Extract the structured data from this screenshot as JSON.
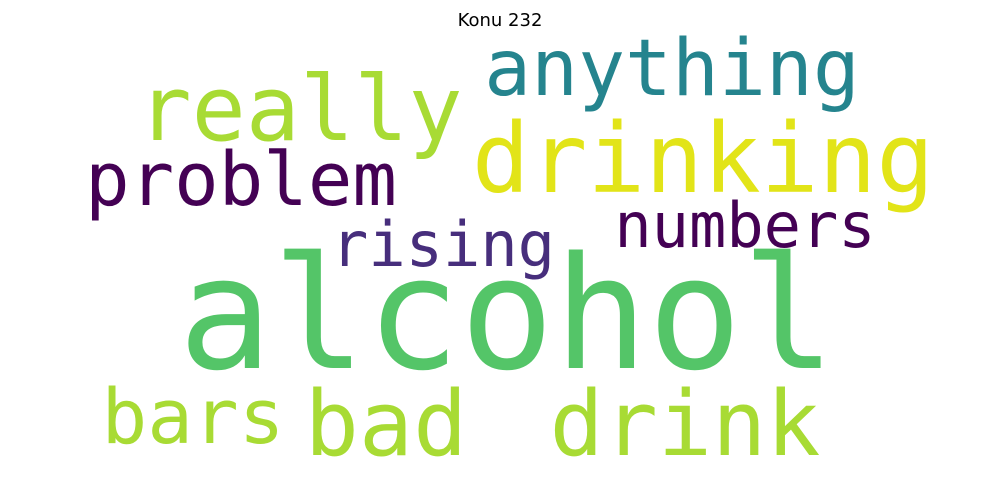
{
  "title": "Konu 232",
  "words": [
    {
      "text": "alcohol",
      "color": "#54c568"
    },
    {
      "text": "drinking",
      "color": "#e2e418"
    },
    {
      "text": "really",
      "color": "#a8db34"
    },
    {
      "text": "anything",
      "color": "#25848e"
    },
    {
      "text": "problem",
      "color": "#440154"
    },
    {
      "text": "numbers",
      "color": "#440154"
    },
    {
      "text": "rising",
      "color": "#472e7c"
    },
    {
      "text": "bad",
      "color": "#a8db34"
    },
    {
      "text": "drink",
      "color": "#a8db34"
    },
    {
      "text": "bars",
      "color": "#a8db34"
    }
  ]
}
